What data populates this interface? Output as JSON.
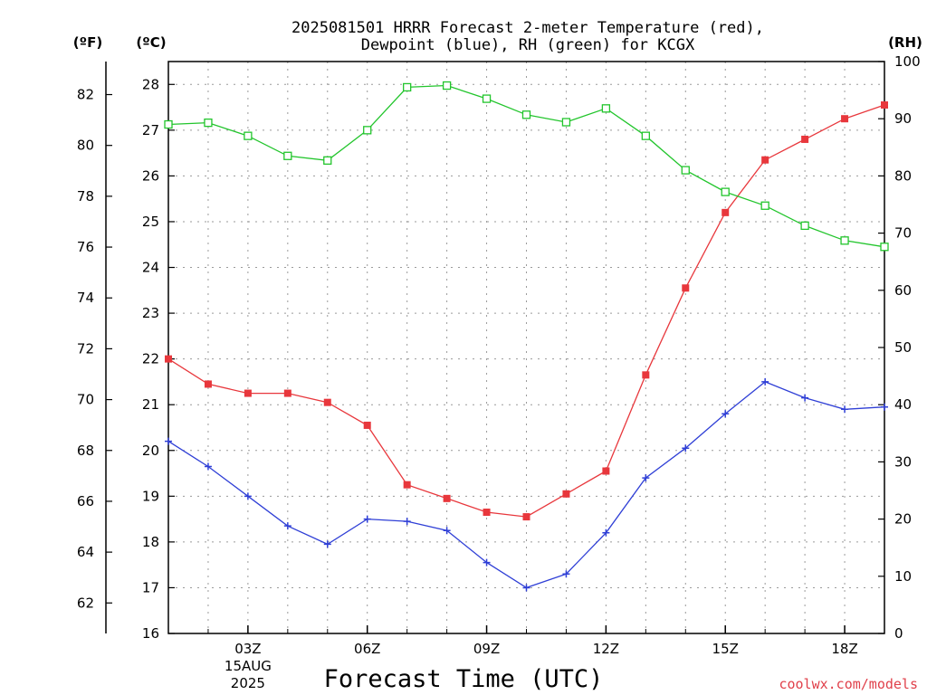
{
  "chart_data": {
    "type": "line",
    "title_line1": "2025081501 HRRR Forecast 2-meter Temperature (red),",
    "title_line2": "Dewpoint (blue), RH (green) for KCGX",
    "xlabel": "Forecast Time (UTC)",
    "credit": "coolwx.com/models",
    "units": {
      "fahrenheit": "(ºF)",
      "celsius": "(ºC)",
      "rh": "(RH)"
    },
    "x": [
      "01Z",
      "02Z",
      "03Z",
      "04Z",
      "05Z",
      "06Z",
      "07Z",
      "08Z",
      "09Z",
      "10Z",
      "11Z",
      "12Z",
      "13Z",
      "14Z",
      "15Z",
      "16Z",
      "17Z",
      "18Z",
      "19Z"
    ],
    "x_ticks": [
      {
        "index": 2,
        "label": "03Z",
        "sub1": "15AUG",
        "sub2": "2025"
      },
      {
        "index": 5,
        "label": "06Z"
      },
      {
        "index": 8,
        "label": "09Z"
      },
      {
        "index": 11,
        "label": "12Z"
      },
      {
        "index": 14,
        "label": "15Z"
      },
      {
        "index": 17,
        "label": "18Z"
      }
    ],
    "y_celsius": {
      "min": 16,
      "max": 28.5,
      "ticks": [
        16,
        17,
        18,
        19,
        20,
        21,
        22,
        23,
        24,
        25,
        26,
        27,
        28
      ]
    },
    "y_fahrenheit": {
      "ticks": [
        62,
        64,
        66,
        68,
        70,
        72,
        74,
        76,
        78,
        80,
        82
      ]
    },
    "y_rh": {
      "min": 0,
      "max": 100,
      "ticks": [
        0,
        10,
        20,
        30,
        40,
        50,
        60,
        70,
        80,
        90,
        100
      ]
    },
    "grid": true,
    "series": [
      {
        "key": "temp",
        "name": "Temperature",
        "color": "#e8373c",
        "marker": "filled-square",
        "axis": "celsius",
        "values": [
          22.0,
          21.45,
          21.25,
          21.25,
          21.05,
          20.55,
          19.25,
          18.95,
          18.65,
          18.55,
          19.05,
          19.55,
          21.65,
          23.55,
          25.2,
          26.35,
          26.8,
          27.25,
          27.55
        ]
      },
      {
        "key": "dewpoint",
        "name": "Dewpoint",
        "color": "#2f3fd6",
        "marker": "plus",
        "axis": "celsius",
        "values": [
          20.2,
          19.65,
          19.0,
          18.35,
          17.95,
          18.5,
          18.45,
          18.25,
          17.55,
          17.0,
          17.3,
          18.2,
          19.4,
          20.05,
          20.8,
          21.5,
          21.15,
          20.9,
          20.95
        ]
      },
      {
        "key": "rh",
        "name": "RH",
        "color": "#22c52c",
        "marker": "open-square",
        "axis": "rh",
        "values": [
          89.0,
          89.3,
          87.0,
          83.5,
          82.7,
          88.0,
          95.5,
          95.8,
          93.5,
          90.7,
          89.4,
          91.8,
          87.0,
          81.0,
          77.2,
          74.8,
          71.3,
          68.7,
          67.6
        ]
      }
    ]
  }
}
